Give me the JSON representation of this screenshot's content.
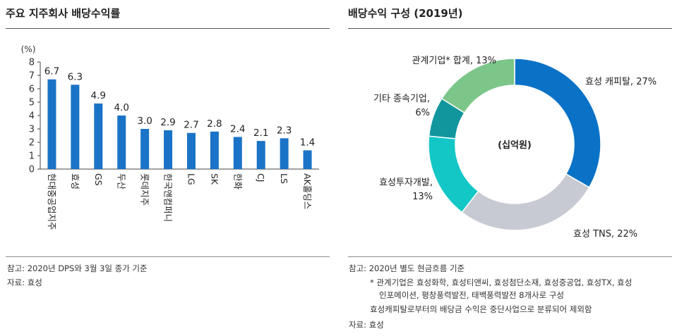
{
  "left_panel": {
    "title": "주요 지주회사 배당수익률",
    "notes": [
      "참고: 2020년 DPS와 3월 3일 종가 기준",
      "자료: 효성"
    ]
  },
  "right_panel": {
    "title": "배당수익 구성 (2019년)",
    "notes": [
      "참고: 2020년 별도 현금흐름 기준",
      "* 관계기업은 효성화학, 효성티앤씨, 효성첨단소재, 효성중공업, 효성TX, 효성",
      "인포메이션, 평창풍력발전, 태백풍력발전 8개사로 구성",
      "효성캐피탈로부터의 배당금 수익은 중단사업으로 분류되어 제외함",
      "자료: 효성"
    ]
  },
  "chart_data": [
    {
      "type": "bar",
      "ylabel": "(%)",
      "ylim": [
        0,
        8
      ],
      "yticks": [
        0,
        1,
        2,
        3,
        4,
        5,
        6,
        7,
        8
      ],
      "categories": [
        "현대중공업지주",
        "효성",
        "GS",
        "두산",
        "롯데지주",
        "한국앤컴퍼니",
        "LG",
        "SK",
        "한화",
        "CJ",
        "LS",
        "AK홀딩스"
      ],
      "values": [
        6.7,
        6.3,
        4.9,
        4.0,
        3.0,
        2.9,
        2.7,
        2.8,
        2.4,
        2.1,
        2.3,
        1.4
      ],
      "value_labels": [
        "6.7",
        "6.3",
        "4.9",
        "4.0",
        "3.0",
        "2.9",
        "2.7",
        "2.8",
        "2.4",
        "2.1",
        "2.3",
        "1.4"
      ],
      "bar_color": "#1a73c7"
    },
    {
      "type": "pie",
      "donut": true,
      "center_label": "(십억원)",
      "slices": [
        {
          "label_lines": [
            "효성 캐피탈, 27%"
          ],
          "value": 27,
          "color": "#0a72c6"
        },
        {
          "label_lines": [
            "효성 TNS, 22%"
          ],
          "value": 22,
          "color": "#c8cad3"
        },
        {
          "label_lines": [
            "효성투자개발,",
            "13%"
          ],
          "value": 13,
          "color": "#14c7c7"
        },
        {
          "label_lines": [
            "기타 종속기업,",
            "6%"
          ],
          "value": 6,
          "color": "#12969e"
        },
        {
          "label_lines": [
            "관계기업* 합계, 13%"
          ],
          "value": 13,
          "color": "#7cc68a"
        }
      ]
    }
  ]
}
